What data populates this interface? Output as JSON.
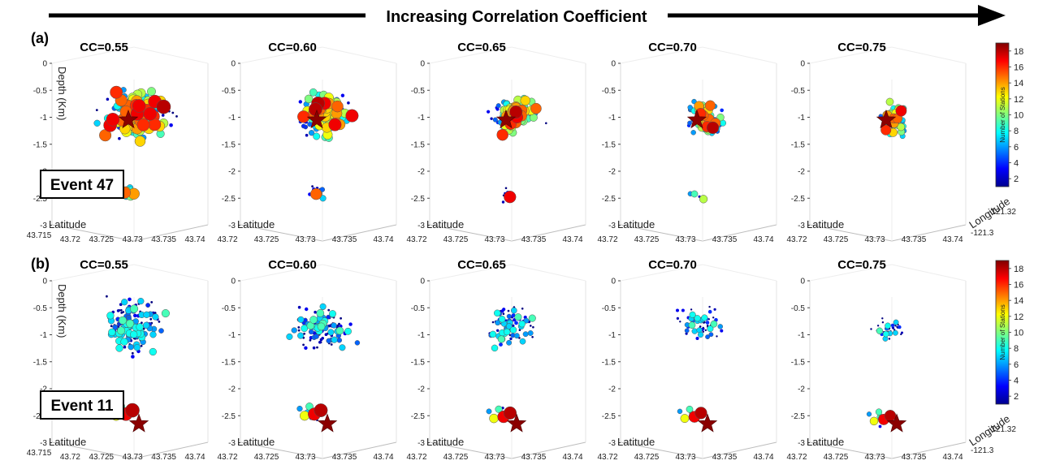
{
  "banner": {
    "label": "Increasing Correlation Coefficient"
  },
  "rows": [
    {
      "label": "(a)",
      "event": "Event 47"
    },
    {
      "label": "(b)",
      "event": "Event 11"
    }
  ],
  "panel_titles": [
    "CC=0.55",
    "CC=0.60",
    "CC=0.65",
    "CC=0.70",
    "CC=0.75"
  ],
  "axes": {
    "depth_label": "Depth (Km)",
    "latitude_label": "Latitude",
    "longitude_label": "Longitude",
    "depth_ticks": [
      "0",
      "-0.5",
      "-1",
      "-1.5",
      "-2",
      "-2.5",
      "-3"
    ],
    "latitude_ticks_first": [
      "43.715",
      "43.72",
      "43.725",
      "43.73",
      "43.735",
      "43.74"
    ],
    "latitude_ticks_other": [
      "43.72",
      "43.725",
      "43.73",
      "43.735",
      "43.74"
    ],
    "longitude_ticks": [
      "-121.32",
      "-121.3"
    ]
  },
  "colorbar": {
    "title": "Number of Stations",
    "ticks": [
      "2",
      "4",
      "6",
      "8",
      "10",
      "12",
      "14",
      "16",
      "18"
    ],
    "range": [
      1,
      19
    ],
    "colormap": "jet"
  },
  "chart_data": [
    {
      "type": "scatter",
      "row": "(a)",
      "event": "Event 47",
      "zlabel": "Depth (Km)",
      "xlabel": "Latitude",
      "ylabel": "Longitude",
      "zlim": [
        -3,
        0
      ],
      "xlim_first": [
        43.715,
        43.74
      ],
      "xlim_other": [
        43.72,
        43.74
      ],
      "color_variable": "Number of Stations",
      "clim": [
        1,
        19
      ],
      "panels": [
        {
          "title": "CC=0.55",
          "retained_events_approx": 180,
          "main_cluster_depth_km": [
            -0.3,
            -1.6
          ],
          "deep_cluster_depth_km": [
            -2.2,
            -2.6
          ],
          "max_stations": 18
        },
        {
          "title": "CC=0.60",
          "retained_events_approx": 150,
          "main_cluster_depth_km": [
            -0.4,
            -1.5
          ],
          "deep_cluster_depth_km": [
            -2.2,
            -2.6
          ],
          "max_stations": 18
        },
        {
          "title": "CC=0.65",
          "retained_events_approx": 110,
          "main_cluster_depth_km": [
            -0.4,
            -1.5
          ],
          "deep_cluster_depth_km": [
            -2.3,
            -2.6
          ],
          "max_stations": 18
        },
        {
          "title": "CC=0.70",
          "retained_events_approx": 60,
          "main_cluster_depth_km": [
            -0.5,
            -1.5
          ],
          "deep_cluster_depth_km": [
            -2.3,
            -2.6
          ],
          "max_stations": 18
        },
        {
          "title": "CC=0.75",
          "retained_events_approx": 40,
          "main_cluster_depth_km": [
            -0.6,
            -1.5
          ],
          "deep_cluster_depth_km": [],
          "max_stations": 18
        }
      ],
      "template_marker": {
        "shape": "star",
        "depth_km": -1.05
      }
    },
    {
      "type": "scatter",
      "row": "(b)",
      "event": "Event 11",
      "zlabel": "Depth (Km)",
      "xlabel": "Latitude",
      "ylabel": "Longitude",
      "zlim": [
        -3,
        0
      ],
      "xlim_first": [
        43.715,
        43.74
      ],
      "xlim_other": [
        43.72,
        43.74
      ],
      "color_variable": "Number of Stations",
      "clim": [
        1,
        19
      ],
      "panels": [
        {
          "title": "CC=0.55",
          "retained_events_approx": 170,
          "main_cluster_depth_km": [
            -0.1,
            -1.6
          ],
          "deep_cluster_depth_km": [
            -2.2,
            -2.7
          ],
          "max_stations": 18
        },
        {
          "title": "CC=0.60",
          "retained_events_approx": 130,
          "main_cluster_depth_km": [
            -0.2,
            -1.5
          ],
          "deep_cluster_depth_km": [
            -2.2,
            -2.7
          ],
          "max_stations": 18
        },
        {
          "title": "CC=0.65",
          "retained_events_approx": 100,
          "main_cluster_depth_km": [
            -0.2,
            -1.5
          ],
          "deep_cluster_depth_km": [
            -2.3,
            -2.7
          ],
          "max_stations": 18
        },
        {
          "title": "CC=0.70",
          "retained_events_approx": 70,
          "main_cluster_depth_km": [
            -0.3,
            -1.3
          ],
          "deep_cluster_depth_km": [
            -2.3,
            -2.7
          ],
          "max_stations": 18
        },
        {
          "title": "CC=0.75",
          "retained_events_approx": 45,
          "main_cluster_depth_km": [
            -0.6,
            -1.2
          ],
          "deep_cluster_depth_km": [
            -2.4,
            -2.7
          ],
          "max_stations": 18
        }
      ],
      "template_marker": {
        "shape": "star",
        "depth_km": -2.65
      }
    }
  ]
}
